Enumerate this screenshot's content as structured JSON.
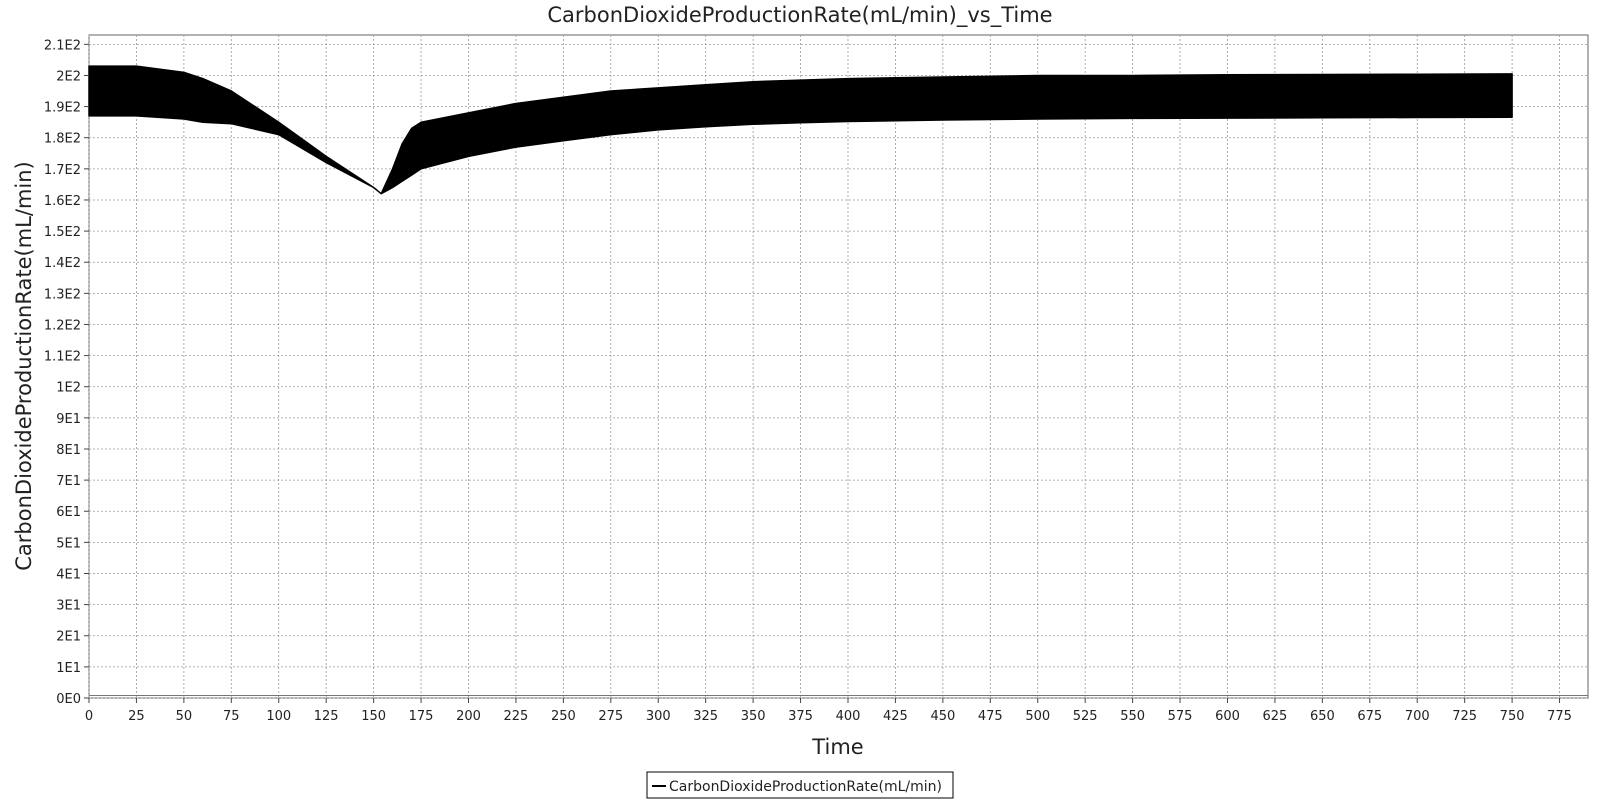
{
  "chart_data": {
    "type": "line",
    "title": "CarbonDioxideProductionRate(mL/min)_vs_Time",
    "xlabel": "Time",
    "ylabel": "CarbonDioxideProductionRate(mL/min)",
    "xlim": [
      0,
      790
    ],
    "ylim": [
      0,
      213
    ],
    "x_ticks": [
      0,
      25,
      50,
      75,
      100,
      125,
      150,
      175,
      200,
      225,
      250,
      275,
      300,
      325,
      350,
      375,
      400,
      425,
      450,
      475,
      500,
      525,
      550,
      575,
      600,
      625,
      650,
      675,
      700,
      725,
      750,
      775
    ],
    "x_tick_labels": [
      "0",
      "25",
      "50",
      "75",
      "100",
      "125",
      "150",
      "175",
      "200",
      "225",
      "250",
      "275",
      "300",
      "325",
      "350",
      "375",
      "400",
      "425",
      "450",
      "475",
      "500",
      "525",
      "550",
      "575",
      "600",
      "625",
      "650",
      "675",
      "700",
      "725",
      "750",
      "775"
    ],
    "y_ticks": [
      0,
      10,
      20,
      30,
      40,
      50,
      60,
      70,
      80,
      90,
      100,
      110,
      120,
      130,
      140,
      150,
      160,
      170,
      180,
      190,
      200,
      210
    ],
    "y_tick_labels": [
      "0E0",
      "1E1",
      "2E1",
      "3E1",
      "4E1",
      "5E1",
      "6E1",
      "7E1",
      "8E1",
      "9E1",
      "1E2",
      "1.1E2",
      "1.2E2",
      "1.3E2",
      "1.4E2",
      "1.5E2",
      "1.6E2",
      "1.7E2",
      "1.8E2",
      "1.9E2",
      "2E2",
      "2.1E2"
    ],
    "grid": true,
    "legend_position": "bottom-center",
    "series": [
      {
        "name": "CarbonDioxideProductionRate(mL/min)",
        "color": "#000000",
        "envelope": {
          "x": [
            0,
            25,
            50,
            60,
            75,
            100,
            125,
            150,
            154,
            160,
            165,
            170,
            175,
            200,
            225,
            250,
            275,
            300,
            325,
            350,
            375,
            400,
            450,
            500,
            550,
            600,
            650,
            700,
            750
          ],
          "upper": [
            203,
            203,
            201,
            199,
            195,
            185,
            174,
            164,
            162,
            170,
            178,
            183,
            185,
            188,
            191,
            193,
            195,
            196,
            197,
            198,
            198.5,
            199,
            199.5,
            200,
            200,
            200.2,
            200.3,
            200.4,
            200.5
          ],
          "lower": [
            187,
            187,
            186,
            185,
            184.5,
            181,
            172,
            164,
            162,
            164,
            166,
            168,
            170,
            174,
            177,
            179,
            181,
            182.5,
            183.5,
            184.3,
            184.8,
            185.2,
            185.7,
            186,
            186.2,
            186.3,
            186.4,
            186.5,
            186.6
          ]
        }
      }
    ]
  }
}
